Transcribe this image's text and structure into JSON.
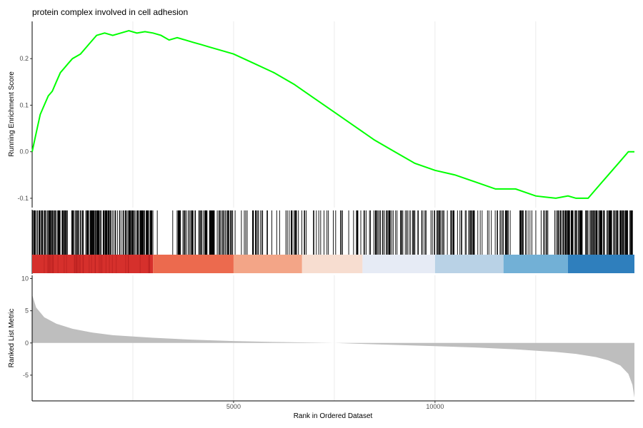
{
  "chart_data": {
    "type": "line",
    "title": "protein complex involved in cell adhesion",
    "xlabel": "Rank in Ordered Dataset",
    "xlim": [
      0,
      14950
    ],
    "x_ticks": [
      5000,
      10000
    ],
    "x_tick_labels": [
      "5000",
      "10000"
    ],
    "grid": true,
    "panels": {
      "enrichment": {
        "ylabel": "Running Enrichment Score",
        "ylim": [
          -0.12,
          0.28
        ],
        "y_ticks": [
          -0.1,
          0.0,
          0.1,
          0.2
        ],
        "y_tick_labels": [
          "-0.1",
          "0.0",
          "0.1",
          "0.2"
        ],
        "color": "#00ff00",
        "series": [
          {
            "x": [
              0,
              100,
              200,
              300,
              400,
              500,
              600,
              700,
              800,
              900,
              1000,
              1200,
              1400,
              1600,
              1800,
              2000,
              2200,
              2400,
              2600,
              2800,
              3000,
              3200,
              3400,
              3600,
              3800,
              4000,
              4200,
              4400,
              4600,
              4800,
              5000,
              5500,
              6000,
              6500,
              7000,
              7500,
              8000,
              8500,
              9000,
              9500,
              10000,
              10500,
              11000,
              11500,
              12000,
              12500,
              13000,
              13300,
              13500,
              13800,
              14000,
              14200,
              14400,
              14600,
              14800,
              14950
            ],
            "y": [
              0.0,
              0.04,
              0.08,
              0.1,
              0.12,
              0.13,
              0.15,
              0.17,
              0.18,
              0.19,
              0.2,
              0.21,
              0.23,
              0.25,
              0.255,
              0.25,
              0.255,
              0.26,
              0.255,
              0.258,
              0.255,
              0.25,
              0.24,
              0.245,
              0.24,
              0.235,
              0.23,
              0.225,
              0.22,
              0.215,
              0.21,
              0.19,
              0.17,
              0.145,
              0.115,
              0.085,
              0.055,
              0.025,
              0.0,
              -0.025,
              -0.04,
              -0.05,
              -0.065,
              -0.08,
              -0.08,
              -0.095,
              -0.1,
              -0.095,
              -0.1,
              -0.1,
              -0.08,
              -0.06,
              -0.04,
              -0.02,
              0.0,
              0.0
            ]
          }
        ]
      },
      "hits": {
        "color_bands": [
          {
            "start": 0,
            "end": 3000,
            "color": "#d6302c"
          },
          {
            "start": 3000,
            "end": 5000,
            "color": "#ec6a4e"
          },
          {
            "start": 5000,
            "end": 6700,
            "color": "#f3a587"
          },
          {
            "start": 6700,
            "end": 8200,
            "color": "#f7ddd0"
          },
          {
            "start": 8200,
            "end": 10000,
            "color": "#e6ebf5"
          },
          {
            "start": 10000,
            "end": 11700,
            "color": "#b9d2e6"
          },
          {
            "start": 11700,
            "end": 13300,
            "color": "#72b0d6"
          },
          {
            "start": 13300,
            "end": 14950,
            "color": "#2f7fbd"
          }
        ]
      },
      "ranked_metric": {
        "ylabel": "Ranked List Metric",
        "ylim": [
          -9,
          10.5
        ],
        "y_ticks": [
          -5,
          0,
          5,
          10
        ],
        "y_tick_labels": [
          "-5",
          "0",
          "5",
          "10"
        ],
        "fill": "#bebebe",
        "series": [
          {
            "x": [
              0,
              100,
              300,
              600,
              1000,
              1500,
              2000,
              3000,
              4000,
              5000,
              6000,
              7000,
              7500,
              8000,
              9000,
              10000,
              11000,
              12000,
              13000,
              13500,
              14000,
              14300,
              14600,
              14800,
              14900,
              14950
            ],
            "y": [
              7.5,
              5.5,
              4.0,
              3.0,
              2.2,
              1.6,
              1.2,
              0.8,
              0.5,
              0.3,
              0.15,
              0.05,
              0.0,
              -0.1,
              -0.3,
              -0.5,
              -0.7,
              -1.0,
              -1.4,
              -1.7,
              -2.2,
              -2.7,
              -3.5,
              -4.8,
              -6.5,
              -8.5
            ]
          }
        ]
      }
    }
  }
}
